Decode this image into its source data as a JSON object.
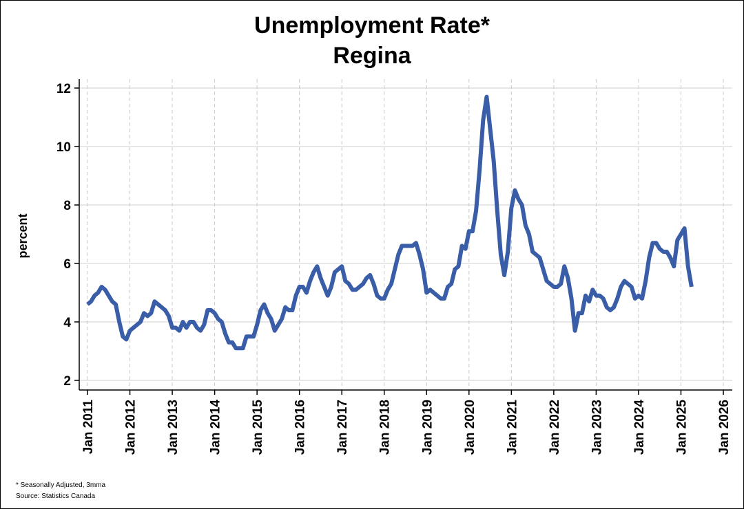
{
  "chart_data": {
    "type": "line",
    "title": "Unemployment Rate*",
    "subtitle": "Regina",
    "xlabel": "",
    "ylabel": "percent",
    "ylim": [
      2,
      12
    ],
    "yticks": [
      "2",
      "4",
      "6",
      "8",
      "10",
      "12"
    ],
    "x_range": [
      "2011-01",
      "2026-01"
    ],
    "xticks": [
      "Jan 2011",
      "Jan 2012",
      "Jan 2013",
      "Jan 2014",
      "Jan 2015",
      "Jan 2016",
      "Jan 2017",
      "Jan 2018",
      "Jan 2019",
      "Jan 2020",
      "Jan 2021",
      "Jan 2022",
      "Jan 2023",
      "Jan 2024",
      "Jan 2025",
      "Jan 2026"
    ],
    "grid": {
      "horizontal": "solid",
      "vertical": "dashed"
    },
    "line_color": "#3A5DA8",
    "series": [
      {
        "start": "2011-01",
        "frequency": "monthly",
        "values": [
          4.6,
          4.7,
          4.9,
          5.0,
          5.2,
          5.1,
          4.9,
          4.7,
          4.6,
          4.0,
          3.5,
          3.4,
          3.7,
          3.8,
          3.9,
          4.0,
          4.3,
          4.2,
          4.3,
          4.7,
          4.6,
          4.5,
          4.4,
          4.2,
          3.8,
          3.8,
          3.7,
          4.0,
          3.8,
          4.0,
          4.0,
          3.8,
          3.7,
          3.9,
          4.4,
          4.4,
          4.3,
          4.1,
          4.0,
          3.6,
          3.3,
          3.3,
          3.1,
          3.1,
          3.1,
          3.5,
          3.5,
          3.5,
          3.9,
          4.4,
          4.6,
          4.3,
          4.1,
          3.7,
          3.9,
          4.1,
          4.5,
          4.4,
          4.4,
          4.9,
          5.2,
          5.2,
          5.0,
          5.4,
          5.7,
          5.9,
          5.5,
          5.2,
          4.9,
          5.2,
          5.7,
          5.8,
          5.9,
          5.4,
          5.3,
          5.1,
          5.1,
          5.2,
          5.3,
          5.5,
          5.6,
          5.3,
          4.9,
          4.8,
          4.8,
          5.1,
          5.3,
          5.8,
          6.3,
          6.6,
          6.6,
          6.6,
          6.6,
          6.7,
          6.3,
          5.8,
          5.0,
          5.1,
          5.0,
          4.9,
          4.8,
          4.8,
          5.2,
          5.3,
          5.8,
          5.9,
          6.6,
          6.5,
          7.1,
          7.1,
          7.8,
          9.2,
          10.9,
          11.7,
          10.6,
          9.5,
          7.8,
          6.3,
          5.6,
          6.4,
          7.9,
          8.5,
          8.2,
          8.0,
          7.3,
          7.0,
          6.4,
          6.3,
          6.2,
          5.8,
          5.4,
          5.3,
          5.2,
          5.2,
          5.3,
          5.9,
          5.5,
          4.8,
          3.7,
          4.3,
          4.3,
          4.9,
          4.7,
          5.1,
          4.9,
          4.9,
          4.8,
          4.5,
          4.4,
          4.5,
          4.8,
          5.2,
          5.4,
          5.3,
          5.2,
          4.8,
          4.9,
          4.8,
          5.4,
          6.2,
          6.7,
          6.7,
          6.5,
          6.4,
          6.4,
          6.2,
          5.9,
          6.8,
          7.0,
          7.2,
          5.9,
          5.2
        ]
      }
    ]
  },
  "footnotes": {
    "note": "* Seasonally Adjusted, 3mma",
    "source": "Source: Statistics Canada"
  }
}
